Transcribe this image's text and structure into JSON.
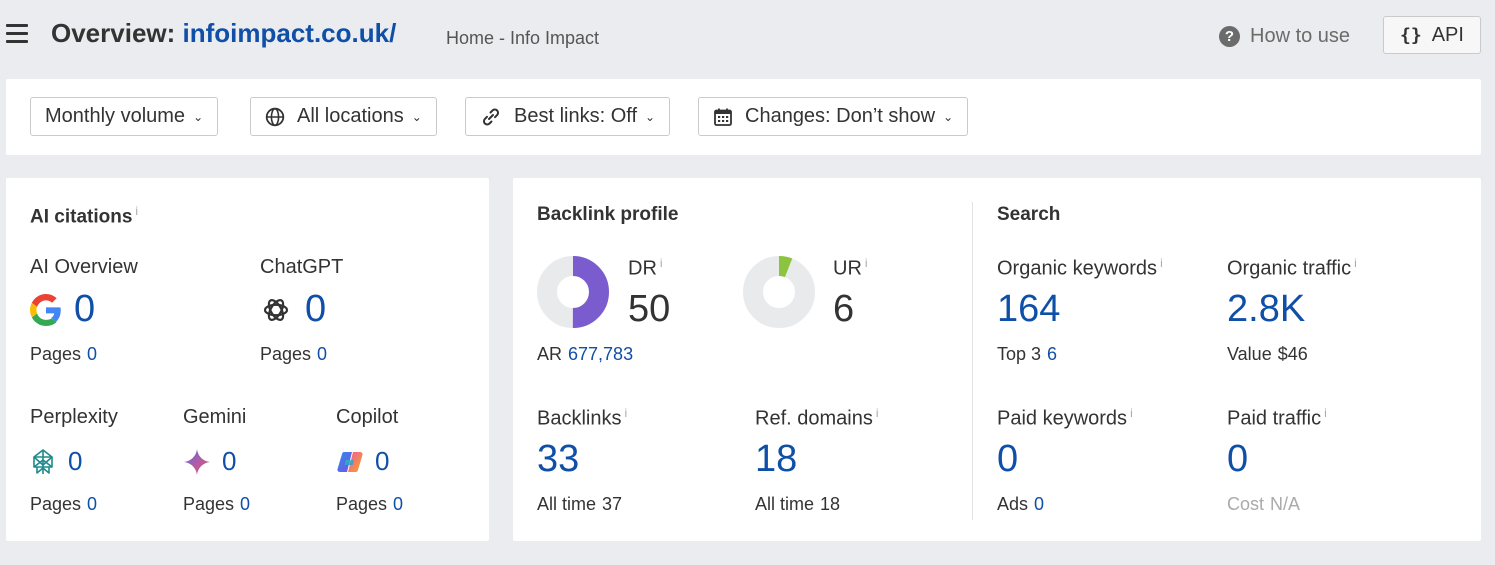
{
  "header": {
    "title_prefix": "Overview: ",
    "domain": "infoimpact.co.uk/",
    "subtitle": "Home - Info Impact",
    "how_to_use": "How to use",
    "api_label": "API"
  },
  "filters": [
    {
      "label": "Monthly volume",
      "icon": ""
    },
    {
      "label": "All locations",
      "icon": "globe-icon"
    },
    {
      "label": "Best links: Off",
      "icon": "link-icon"
    },
    {
      "label": "Changes: Don’t show",
      "icon": "calendar-icon"
    }
  ],
  "ai_citations": {
    "title": "AI citations",
    "info": "i",
    "pages_label": "Pages",
    "overview": {
      "label": "AI Overview",
      "value": "0",
      "pages": "0",
      "icon": "google-icon"
    },
    "chatgpt": {
      "label": "ChatGPT",
      "value": "0",
      "pages": "0",
      "icon": "chatgpt-icon"
    },
    "perplexity": {
      "label": "Perplexity",
      "value": "0",
      "pages": "0",
      "icon": "perplexity-icon"
    },
    "gemini": {
      "label": "Gemini",
      "value": "0",
      "pages": "0",
      "icon": "gemini-icon"
    },
    "copilot": {
      "label": "Copilot",
      "value": "0",
      "pages": "0",
      "icon": "copilot-icon"
    }
  },
  "backlink_profile": {
    "title": "Backlink profile",
    "dr": {
      "label": "DR",
      "value": "50",
      "fraction": 0.5,
      "color": "#7a5ccf"
    },
    "ur": {
      "label": "UR",
      "value": "6",
      "fraction": 0.06,
      "color": "#8cc43f"
    },
    "ar": {
      "label": "AR",
      "value": "677,783"
    },
    "backlinks": {
      "label": "Backlinks",
      "value": "33",
      "sub_label": "All time",
      "sub_value": "37"
    },
    "ref_domains": {
      "label": "Ref. domains",
      "value": "18",
      "sub_label": "All time",
      "sub_value": "18"
    }
  },
  "search": {
    "title": "Search",
    "organic_keywords": {
      "label": "Organic keywords",
      "value": "164",
      "sub_label": "Top 3",
      "sub_value": "6"
    },
    "organic_traffic": {
      "label": "Organic traffic",
      "value": "2.8K",
      "sub_label": "Value",
      "sub_value": "$46"
    },
    "paid_keywords": {
      "label": "Paid keywords",
      "value": "0",
      "sub_label": "Ads",
      "sub_value": "0"
    },
    "paid_traffic": {
      "label": "Paid traffic",
      "value": "0",
      "sub_label": "Cost",
      "sub_value": "N/A"
    }
  },
  "colors": {
    "accent": "#0f4fa8",
    "donut_track": "#e9eaec"
  }
}
